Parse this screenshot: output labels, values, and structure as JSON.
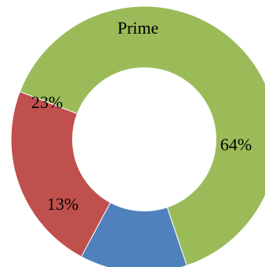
{
  "chart_data": {
    "type": "pie",
    "variant": "donut",
    "title": "",
    "annotation": "Prime",
    "slices": [
      {
        "label": "64%",
        "value": 64,
        "color": "#9BBB59"
      },
      {
        "label": "13%",
        "value": 13,
        "color": "#4F81BD"
      },
      {
        "label": "23%",
        "value": 23,
        "color": "#C0504D"
      }
    ]
  }
}
